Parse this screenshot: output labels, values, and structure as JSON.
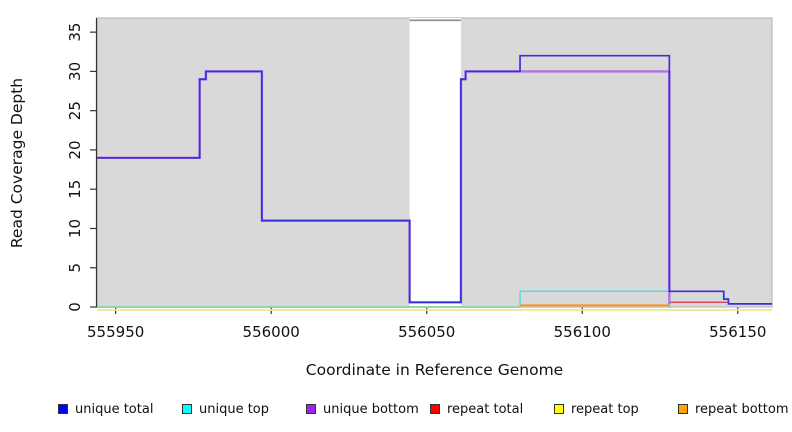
{
  "figure": {
    "xlabel": "Coordinate in Reference Genome",
    "ylabel": "Read Coverage Depth"
  },
  "chart_data": {
    "type": "line",
    "step": true,
    "title": "",
    "xlabel": "Coordinate in Reference Genome",
    "ylabel": "Read Coverage Depth",
    "xlim": [
      555944,
      556161
    ],
    "ylim": [
      0,
      36.8
    ],
    "x_ticks": [
      555950,
      556000,
      556050,
      556100,
      556150
    ],
    "y_ticks": [
      0,
      5,
      10,
      15,
      20,
      25,
      30,
      35
    ],
    "grid": false,
    "legend_position": "bottom",
    "panel_background": "#d9d9d9",
    "panel_border": "#c2c2c2",
    "axis_color": "#333333",
    "gap_region": {
      "x1": 556044.5,
      "x2": 556061,
      "fill": "#ffffff",
      "cap_value": 36.5,
      "cap_color": "#8e8e8e"
    },
    "series": [
      {
        "name": "unique total",
        "legend_color": "#0000ff",
        "line_color": "#3a2fe0",
        "width": 1.7,
        "order": 7,
        "steps": [
          [
            555944,
            555977,
            19
          ],
          [
            555977,
            555979,
            29
          ],
          [
            555979,
            555997,
            30
          ],
          [
            555997,
            556044.5,
            11
          ],
          [
            556044.5,
            556061,
            0.6
          ],
          [
            556061,
            556062.5,
            29
          ],
          [
            556062.5,
            556080,
            30
          ],
          [
            556080,
            556128,
            32
          ],
          [
            556128,
            556145.5,
            2
          ],
          [
            556145.5,
            556147,
            1
          ],
          [
            556147,
            556161,
            0.4
          ]
        ]
      },
      {
        "name": "unique top",
        "legend_color": "#00ffff",
        "line_color": "#4fdfe8",
        "width": 1.5,
        "order": 2,
        "steps": [
          [
            555944,
            556080,
            0
          ],
          [
            556080,
            556128,
            2
          ],
          [
            556128,
            556128.5,
            0
          ]
        ]
      },
      {
        "name": "unique bottom",
        "legend_color": "#a020f0",
        "line_color": "#b271dd",
        "width": 2.4,
        "order": 6,
        "steps": [
          [
            555944,
            555977,
            19
          ],
          [
            555977,
            555979,
            29
          ],
          [
            555979,
            555997,
            30
          ],
          [
            555997,
            556044.5,
            11
          ],
          [
            556044.5,
            556061,
            0.6
          ],
          [
            556061,
            556062.5,
            29
          ],
          [
            556062.5,
            556128,
            30
          ],
          [
            556128,
            556128.5,
            0.5
          ]
        ]
      },
      {
        "name": "repeat total",
        "legend_color": "#ff0000",
        "line_color": "#dc4a66",
        "width": 1.5,
        "order": 5,
        "steps": [
          [
            556128,
            556147,
            0.6
          ]
        ]
      },
      {
        "name": "repeat top",
        "legend_color": "#ffff00",
        "line_color": "#ebe493",
        "width": 1.8,
        "order": 1,
        "dy": 3,
        "steps": [
          [
            555944,
            556161,
            0
          ]
        ]
      },
      {
        "name": "repeat bottom",
        "legend_color": "#ffa500",
        "line_color": "#ff9317",
        "width": 2.0,
        "order": 4,
        "steps": [
          [
            556080,
            556128,
            0.2
          ]
        ]
      }
    ],
    "render_hints": {
      "extra_lines": [
        {
          "name": "zero-overlap-blend",
          "color": "#8fd291",
          "width": 1.6,
          "order": 3,
          "steps": [
            [
              555944,
              556080,
              0
            ]
          ]
        }
      ]
    }
  }
}
